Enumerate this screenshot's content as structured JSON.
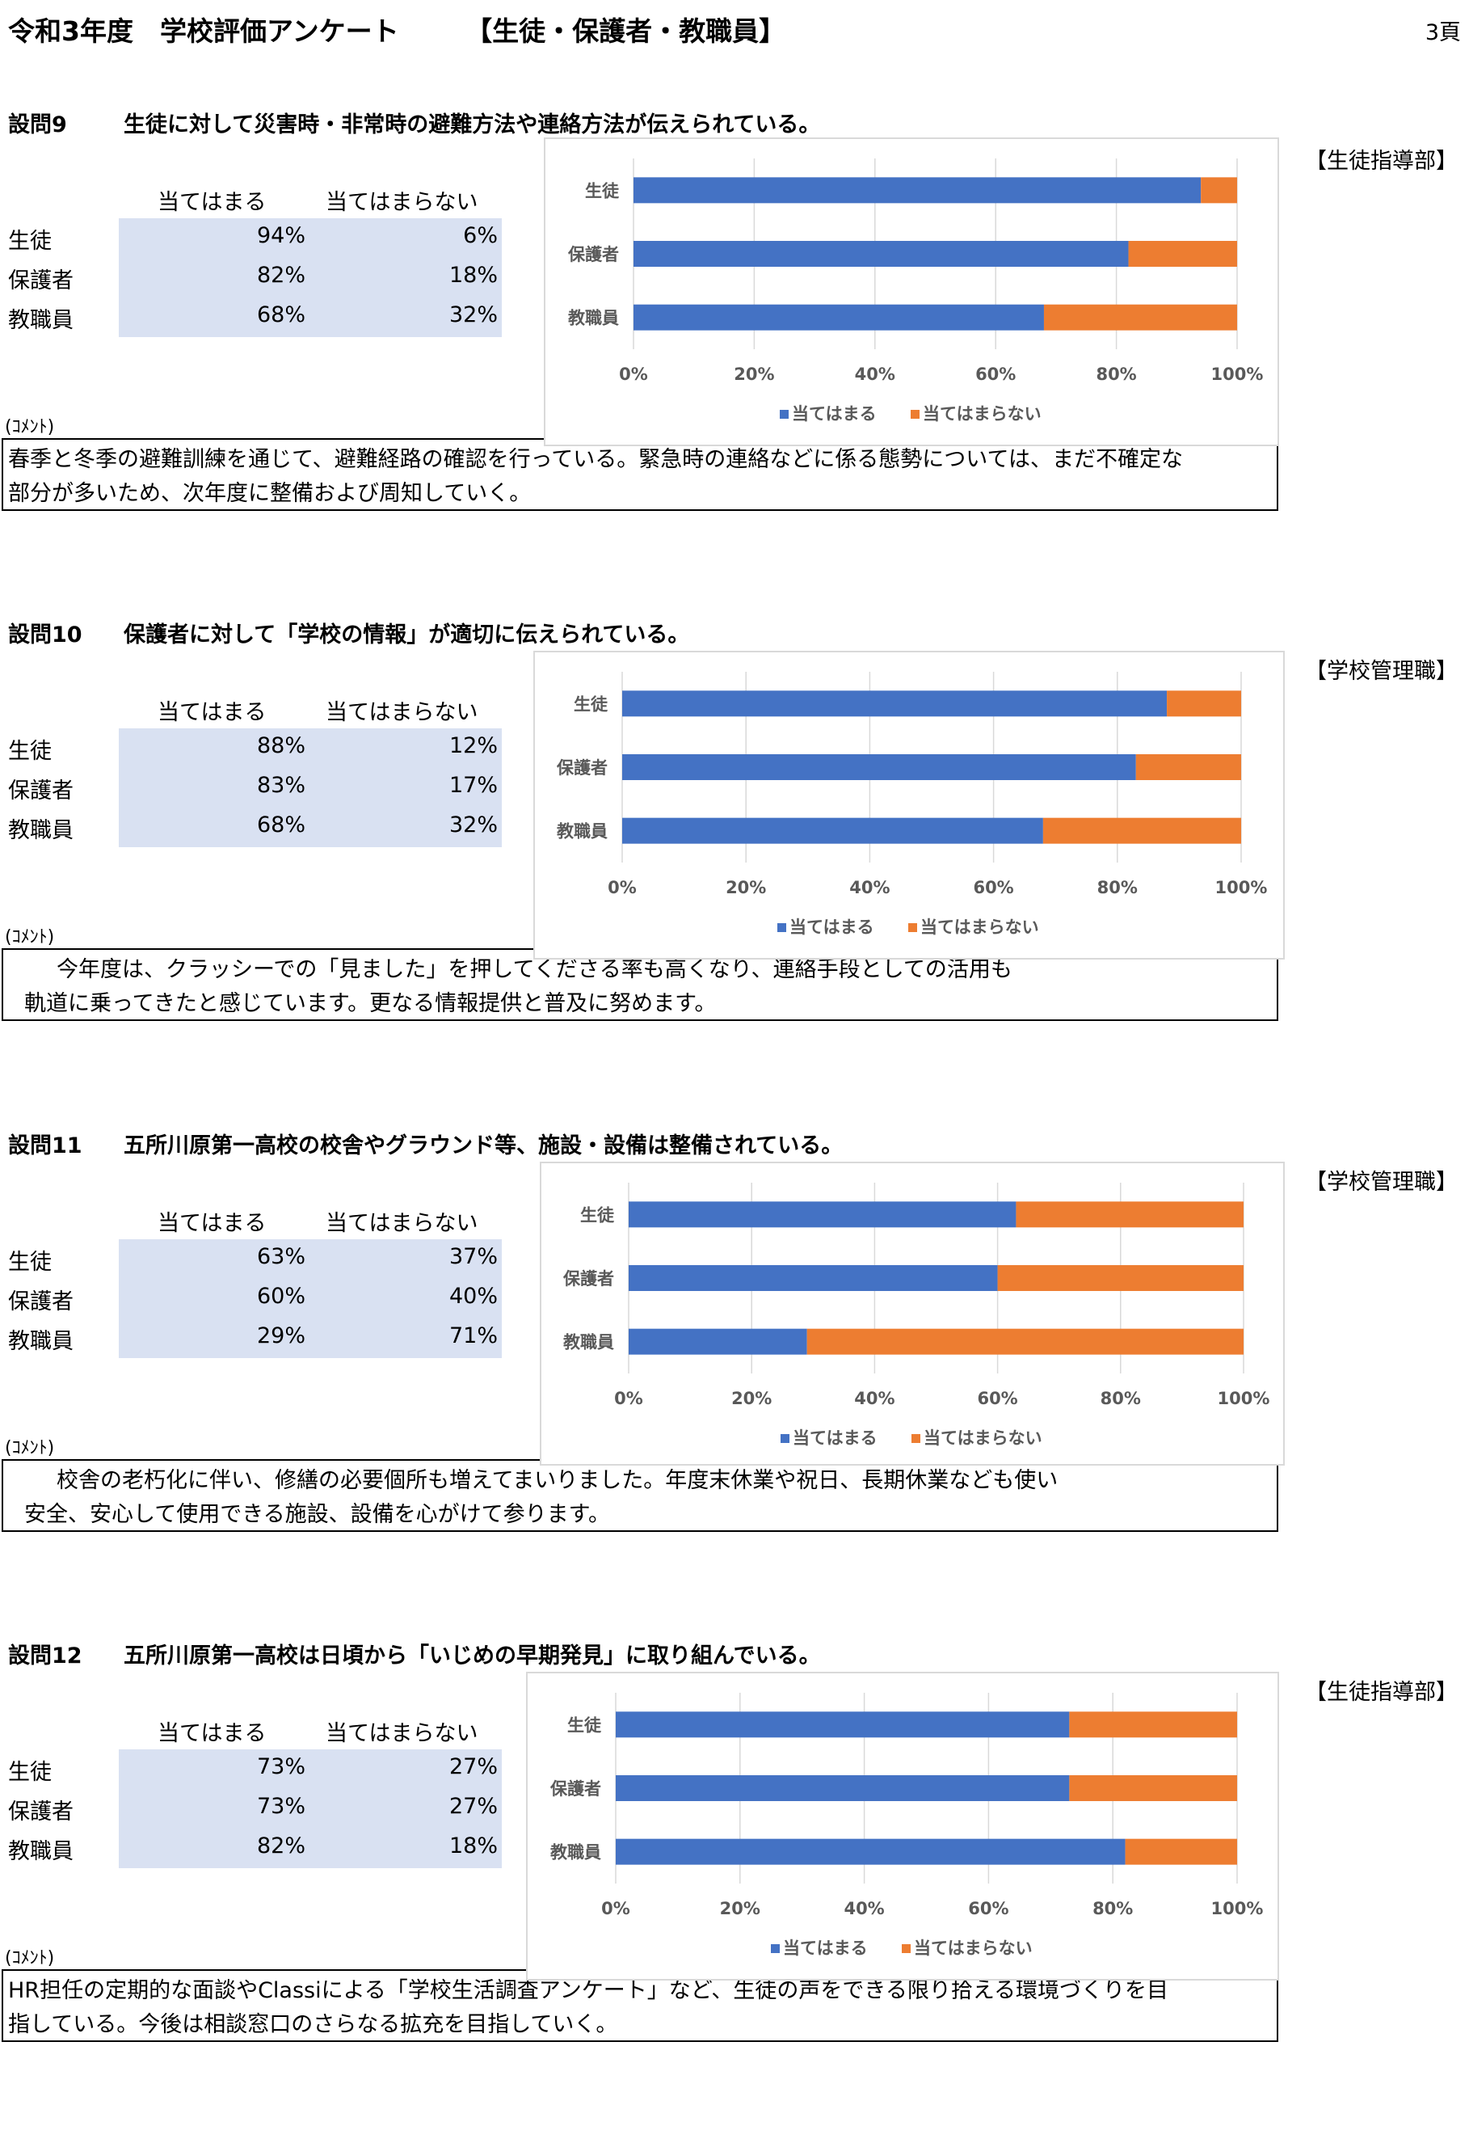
{
  "header": {
    "title": "令和3年度　学校評価アンケート　　　【生徒・保護者・教職員】",
    "page_number": "3頁"
  },
  "table_headers": {
    "agree": "当てはまる",
    "disagree": "当てはまらない"
  },
  "comment_label": "(ｺﾒﾝﾄ)",
  "legend": {
    "agree": "当てはまる",
    "disagree": "当てはまらない"
  },
  "colors": {
    "agree": "#4472c4",
    "disagree": "#ed7d31",
    "table_shade": "#d9e1f2"
  },
  "questions": [
    {
      "label": "設問9",
      "text": "生徒に対して災害時・非常時の避難方法や連絡方法が伝えられている。",
      "department": "【生徒指導部】",
      "rows": [
        {
          "name": "生徒",
          "agree_text": "94%",
          "disagree_text": "6%"
        },
        {
          "name": "保護者",
          "agree_text": "82%",
          "disagree_text": "18%"
        },
        {
          "name": "教職員",
          "agree_text": "68%",
          "disagree_text": "32%"
        }
      ],
      "comment": [
        "春季と冬季の避難訓練を通じて、避難経路の確認を行っている。緊急時の連絡などに係る態勢については、まだ不確定な",
        "部分が多いため、次年度に整備および周知していく。"
      ]
    },
    {
      "label": "設問10",
      "text": "保護者に対して「学校の情報」が適切に伝えられている。",
      "department": "【学校管理職】",
      "rows": [
        {
          "name": "生徒",
          "agree_text": "88%",
          "disagree_text": "12%"
        },
        {
          "name": "保護者",
          "agree_text": "83%",
          "disagree_text": "17%"
        },
        {
          "name": "教職員",
          "agree_text": "68%",
          "disagree_text": "32%"
        }
      ],
      "comment": [
        "今年度は、クラッシーでの「見ました」を押してくださる率も高くなり、連絡手段としての活用も",
        "軌道に乗ってきたと感じています。更なる情報提供と普及に努めます。"
      ]
    },
    {
      "label": "設問11",
      "text": "五所川原第一高校の校舎やグラウンド等、施設・設備は整備されている。",
      "department": "【学校管理職】",
      "rows": [
        {
          "name": "生徒",
          "agree_text": "63%",
          "disagree_text": "37%"
        },
        {
          "name": "保護者",
          "agree_text": "60%",
          "disagree_text": "40%"
        },
        {
          "name": "教職員",
          "agree_text": "29%",
          "disagree_text": "71%"
        }
      ],
      "comment": [
        "校舎の老朽化に伴い、修繕の必要個所も増えてまいりました。年度末休業や祝日、長期休業なども使い",
        "安全、安心して使用できる施設、設備を心がけて参ります。"
      ]
    },
    {
      "label": "設問12",
      "text": "五所川原第一高校は日頃から「いじめの早期発見」に取り組んでいる。",
      "department": "【生徒指導部】",
      "rows": [
        {
          "name": "生徒",
          "agree_text": "73%",
          "disagree_text": "27%"
        },
        {
          "name": "保護者",
          "agree_text": "73%",
          "disagree_text": "27%"
        },
        {
          "name": "教職員",
          "agree_text": "82%",
          "disagree_text": "18%"
        }
      ],
      "comment": [
        "HR担任の定期的な面談やClassiによる「学校生活調査アンケート」など、生徒の声をできる限り拾える環境づくりを目",
        "指している。今後は相談窓口のさらなる拡充を目指していく。"
      ]
    }
  ],
  "chart_data": [
    {
      "type": "bar",
      "orientation": "horizontal",
      "stacked": "percent",
      "categories": [
        "生徒",
        "保護者",
        "教職員"
      ],
      "series": [
        {
          "name": "当てはまる",
          "values": [
            94,
            82,
            68
          ]
        },
        {
          "name": "当てはまらない",
          "values": [
            6,
            18,
            32
          ]
        }
      ],
      "xticks": [
        "0%",
        "20%",
        "40%",
        "60%",
        "80%",
        "100%"
      ],
      "xlim": [
        0,
        100
      ],
      "grid": true,
      "legend": "bottom"
    },
    {
      "type": "bar",
      "orientation": "horizontal",
      "stacked": "percent",
      "categories": [
        "生徒",
        "保護者",
        "教職員"
      ],
      "series": [
        {
          "name": "当てはまる",
          "values": [
            88,
            83,
            68
          ]
        },
        {
          "name": "当てはまらない",
          "values": [
            12,
            17,
            32
          ]
        }
      ],
      "xticks": [
        "0%",
        "20%",
        "40%",
        "60%",
        "80%",
        "100%"
      ],
      "xlim": [
        0,
        100
      ],
      "grid": true,
      "legend": "bottom"
    },
    {
      "type": "bar",
      "orientation": "horizontal",
      "stacked": "percent",
      "categories": [
        "生徒",
        "保護者",
        "教職員"
      ],
      "series": [
        {
          "name": "当てはまる",
          "values": [
            63,
            60,
            29
          ]
        },
        {
          "name": "当てはまらない",
          "values": [
            37,
            40,
            71
          ]
        }
      ],
      "xticks": [
        "0%",
        "20%",
        "40%",
        "60%",
        "80%",
        "100%"
      ],
      "xlim": [
        0,
        100
      ],
      "grid": true,
      "legend": "bottom"
    },
    {
      "type": "bar",
      "orientation": "horizontal",
      "stacked": "percent",
      "categories": [
        "生徒",
        "保護者",
        "教職員"
      ],
      "series": [
        {
          "name": "当てはまる",
          "values": [
            73,
            73,
            82
          ]
        },
        {
          "name": "当てはまらない",
          "values": [
            27,
            27,
            18
          ]
        }
      ],
      "xticks": [
        "0%",
        "20%",
        "40%",
        "60%",
        "80%",
        "100%"
      ],
      "xlim": [
        0,
        100
      ],
      "grid": true,
      "legend": "bottom"
    }
  ]
}
